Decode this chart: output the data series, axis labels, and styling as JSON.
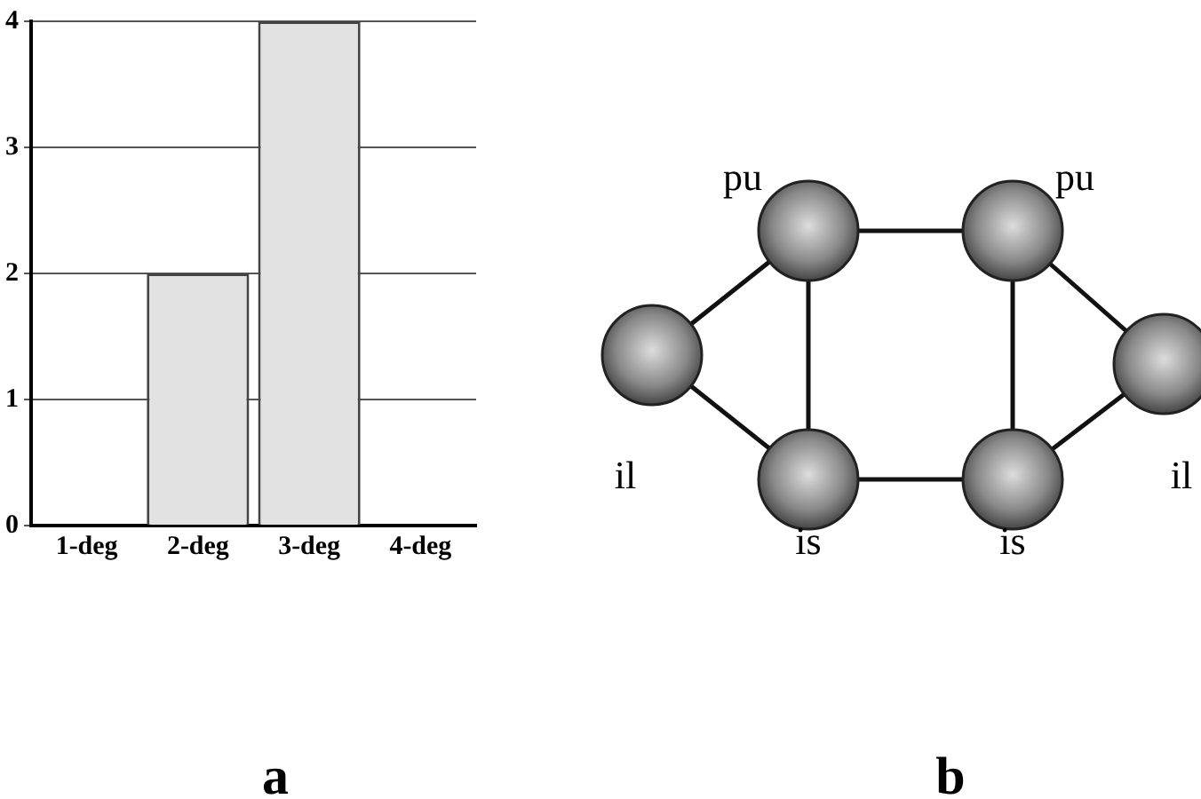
{
  "chart_data": [
    {
      "type": "bar",
      "categories": [
        "1-deg",
        "2-deg",
        "3-deg",
        "4-deg"
      ],
      "values": [
        0,
        2,
        4,
        0
      ],
      "color": "#e2e2e2",
      "ylim": [
        0,
        4
      ],
      "yticks": [
        0,
        1,
        2,
        3,
        4
      ],
      "grid": "y",
      "legend": false,
      "annotations": [
        "a"
      ]
    },
    {
      "type": "other",
      "annotations": [
        "pu",
        "pu",
        "il",
        "il",
        "is",
        "is",
        "b"
      ]
    }
  ]
}
